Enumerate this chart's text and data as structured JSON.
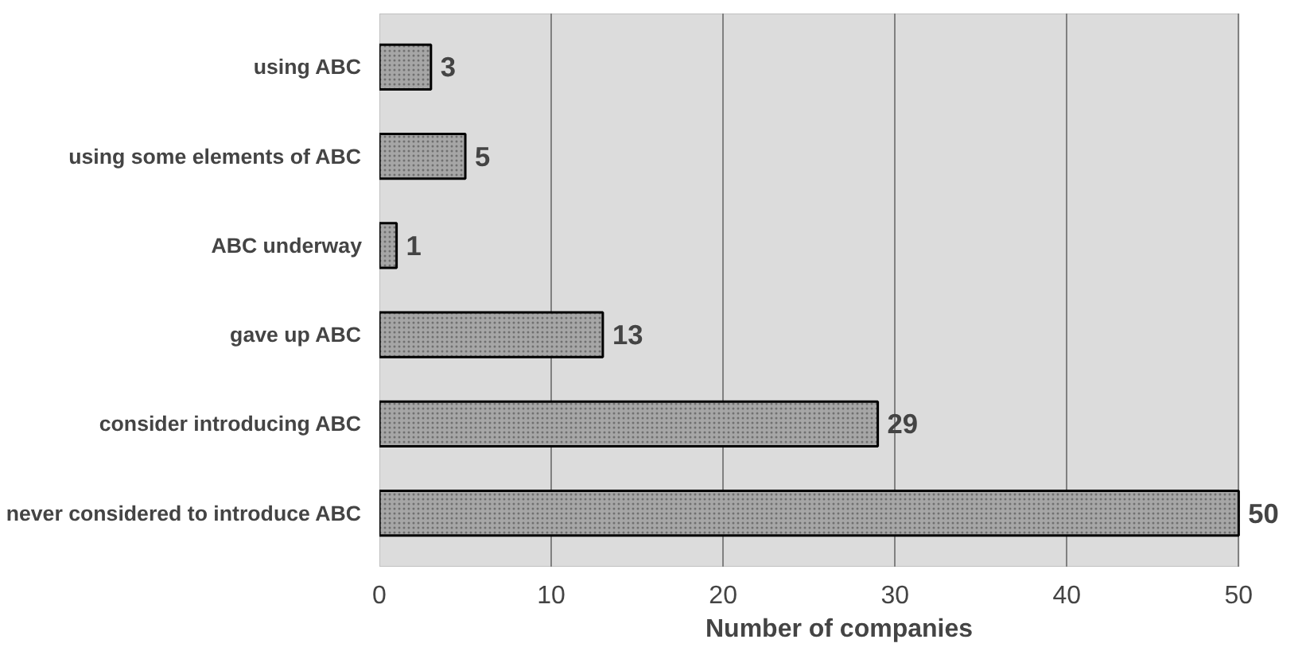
{
  "chart_data": {
    "type": "bar",
    "orientation": "horizontal",
    "xlabel": "Number of companies",
    "categories": [
      "using ABC",
      "using some elements of ABC",
      "ABC underway",
      "gave up ABC",
      "consider introducing ABC",
      "never considered to introduce ABC"
    ],
    "values": [
      3,
      5,
      1,
      13,
      29,
      50
    ],
    "color": "#a6a6a6",
    "xlim": [
      0,
      50
    ],
    "xticks": [
      0,
      10,
      20,
      30,
      40,
      50
    ],
    "grid": "x",
    "data_labels": true
  }
}
